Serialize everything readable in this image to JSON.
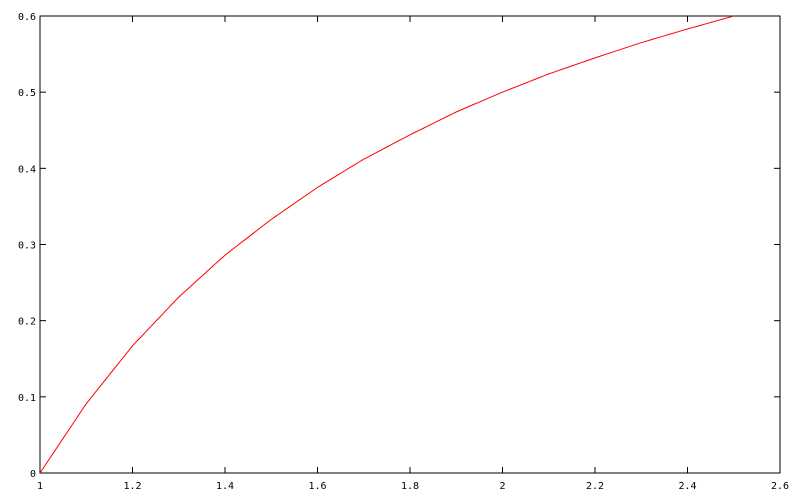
{
  "chart_data": {
    "type": "line",
    "title": "",
    "xlabel": "",
    "ylabel": "",
    "xlim": [
      1,
      2.6
    ],
    "ylim": [
      0,
      0.6
    ],
    "grid": false,
    "x_ticks": [
      "1",
      "1.2",
      "1.4",
      "1.6",
      "1.8",
      "2",
      "2.2",
      "2.4",
      "2.6"
    ],
    "y_ticks": [
      "0",
      "0.1",
      "0.2",
      "0.3",
      "0.4",
      "0.5",
      "0.6"
    ],
    "series": [
      {
        "color": "#ff0000",
        "x": [
          1,
          1.1,
          1.2,
          1.3,
          1.4,
          1.5,
          1.6,
          1.7,
          1.8,
          1.9,
          2,
          2.1,
          2.2,
          2.3,
          2.4,
          2.5
        ],
        "y": [
          0,
          0.091,
          0.167,
          0.231,
          0.286,
          0.333,
          0.375,
          0.412,
          0.444,
          0.474,
          0.5,
          0.524,
          0.545,
          0.565,
          0.583,
          0.6
        ]
      }
    ]
  }
}
